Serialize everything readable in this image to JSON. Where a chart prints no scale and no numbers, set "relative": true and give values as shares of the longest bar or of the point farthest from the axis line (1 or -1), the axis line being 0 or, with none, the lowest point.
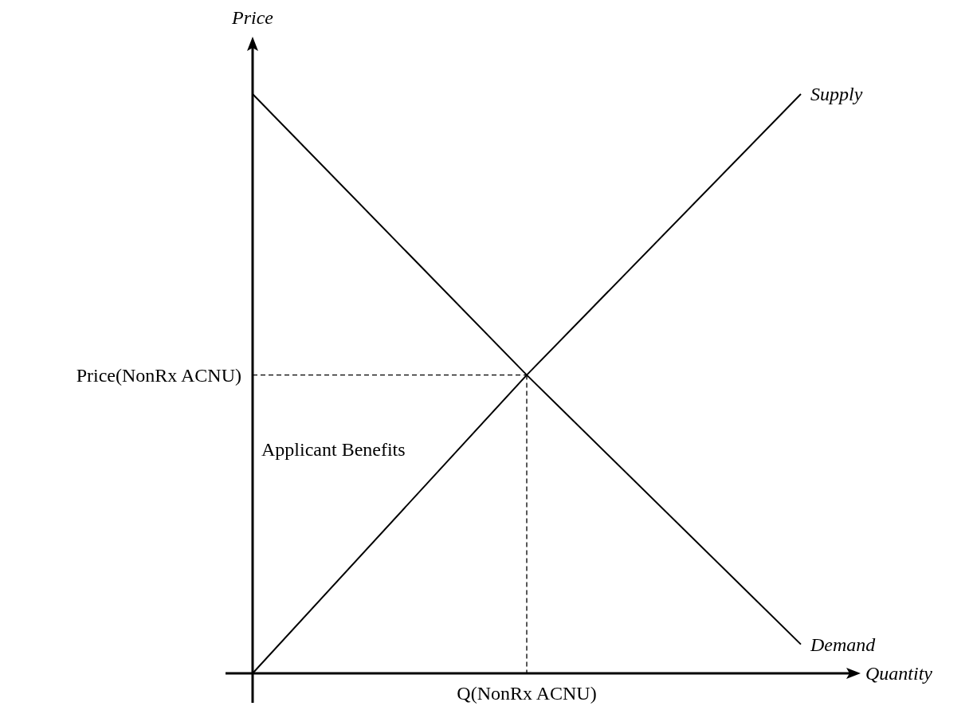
{
  "chart_data": {
    "type": "line",
    "relative": true,
    "xlabel": "Quantity",
    "ylabel": "Price",
    "marker": "none",
    "line_style": "solid",
    "categories": [
      null,
      null,
      null
    ],
    "series": [
      {
        "name": "Supply",
        "color": "#000000",
        "values": [
          0,
          0.515,
          1
        ]
      },
      {
        "name": "Demand",
        "color": "#000000",
        "values": [
          1,
          0.515,
          0.05
        ]
      }
    ],
    "ref_lines": [
      {
        "axis": "y",
        "value": 0.515,
        "label": "Price(NonRx ACNU)",
        "color": "#000000",
        "line_style": "dashed"
      }
    ],
    "annotations": [
      "Applicant Benefits",
      "Q(NonRx ACNU)"
    ]
  }
}
